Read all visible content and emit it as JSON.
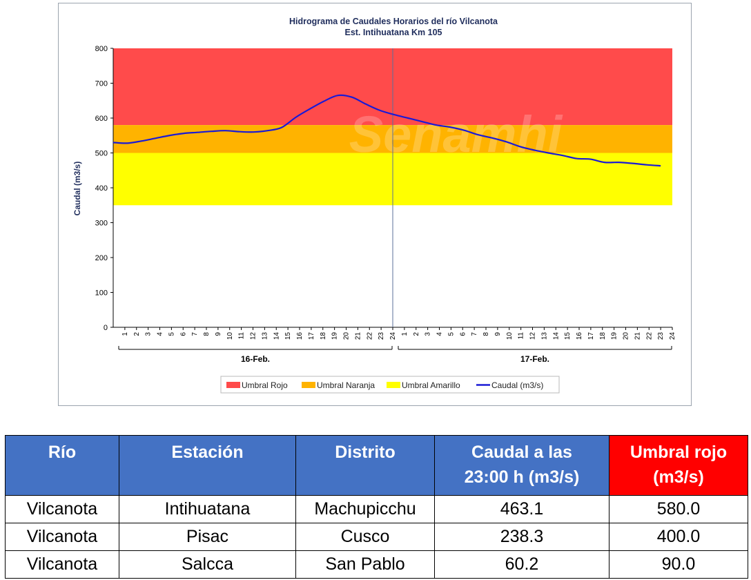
{
  "chart_data": {
    "type": "line",
    "title": "Hidrograma de Caudales Horarios del río Vilcanota",
    "subtitle": "Est. Intihuatana Km 105",
    "ylabel": "Caudal (m3/s)",
    "ylim": [
      0,
      800
    ],
    "yticks": [
      0,
      100,
      200,
      300,
      400,
      500,
      600,
      700,
      800
    ],
    "watermark": "Senamhi",
    "days": [
      {
        "label": "16-Feb.",
        "hours": [
          "1",
          "2",
          "3",
          "4",
          "5",
          "6",
          "7",
          "8",
          "9",
          "10",
          "11",
          "12",
          "13",
          "14",
          "15",
          "16",
          "17",
          "18",
          "19",
          "20",
          "21",
          "22",
          "23",
          "24"
        ]
      },
      {
        "label": "17-Feb.",
        "hours": [
          "1",
          "2",
          "3",
          "4",
          "5",
          "6",
          "7",
          "8",
          "9",
          "10",
          "11",
          "12",
          "13",
          "14",
          "15",
          "16",
          "17",
          "18",
          "19",
          "20",
          "21",
          "22",
          "23",
          "24"
        ]
      }
    ],
    "thresholds": [
      {
        "name": "Umbral Rojo",
        "from": 580,
        "to": 800,
        "color": "#ff4b4b"
      },
      {
        "name": "Umbral Naranja",
        "from": 500,
        "to": 580,
        "color": "#ffb300"
      },
      {
        "name": "Umbral Amarillo",
        "from": 350,
        "to": 500,
        "color": "#ffff00"
      }
    ],
    "series": [
      {
        "name": "Caudal (m3/s)",
        "color": "#1a1ad6",
        "values": [
          530,
          528,
          534,
          542,
          550,
          556,
          559,
          562,
          564,
          561,
          560,
          564,
          573,
          602,
          626,
          648,
          665,
          660,
          640,
          622,
          610,
          600,
          590,
          580,
          574,
          565,
          552,
          543,
          532,
          518,
          508,
          500,
          493,
          484,
          482,
          473,
          473,
          470,
          466,
          463.1
        ]
      }
    ]
  },
  "table": {
    "headers": [
      "Río",
      "Estación",
      "Distrito",
      "Caudal a las 23:00 h (m3/s)",
      "Umbral rojo (m3/s)"
    ],
    "rows": [
      [
        "Vilcanota",
        "Intihuatana",
        "Machupicchu",
        "463.1",
        "580.0"
      ],
      [
        "Vilcanota",
        "Pisac",
        "Cusco",
        "238.3",
        "400.0"
      ],
      [
        "Vilcanota",
        "Salcca",
        "San Pablo",
        "60.2",
        "90.0"
      ]
    ],
    "header_colors": {
      "default": "#4472c4",
      "umbral_rojo": "#ff0000"
    }
  }
}
